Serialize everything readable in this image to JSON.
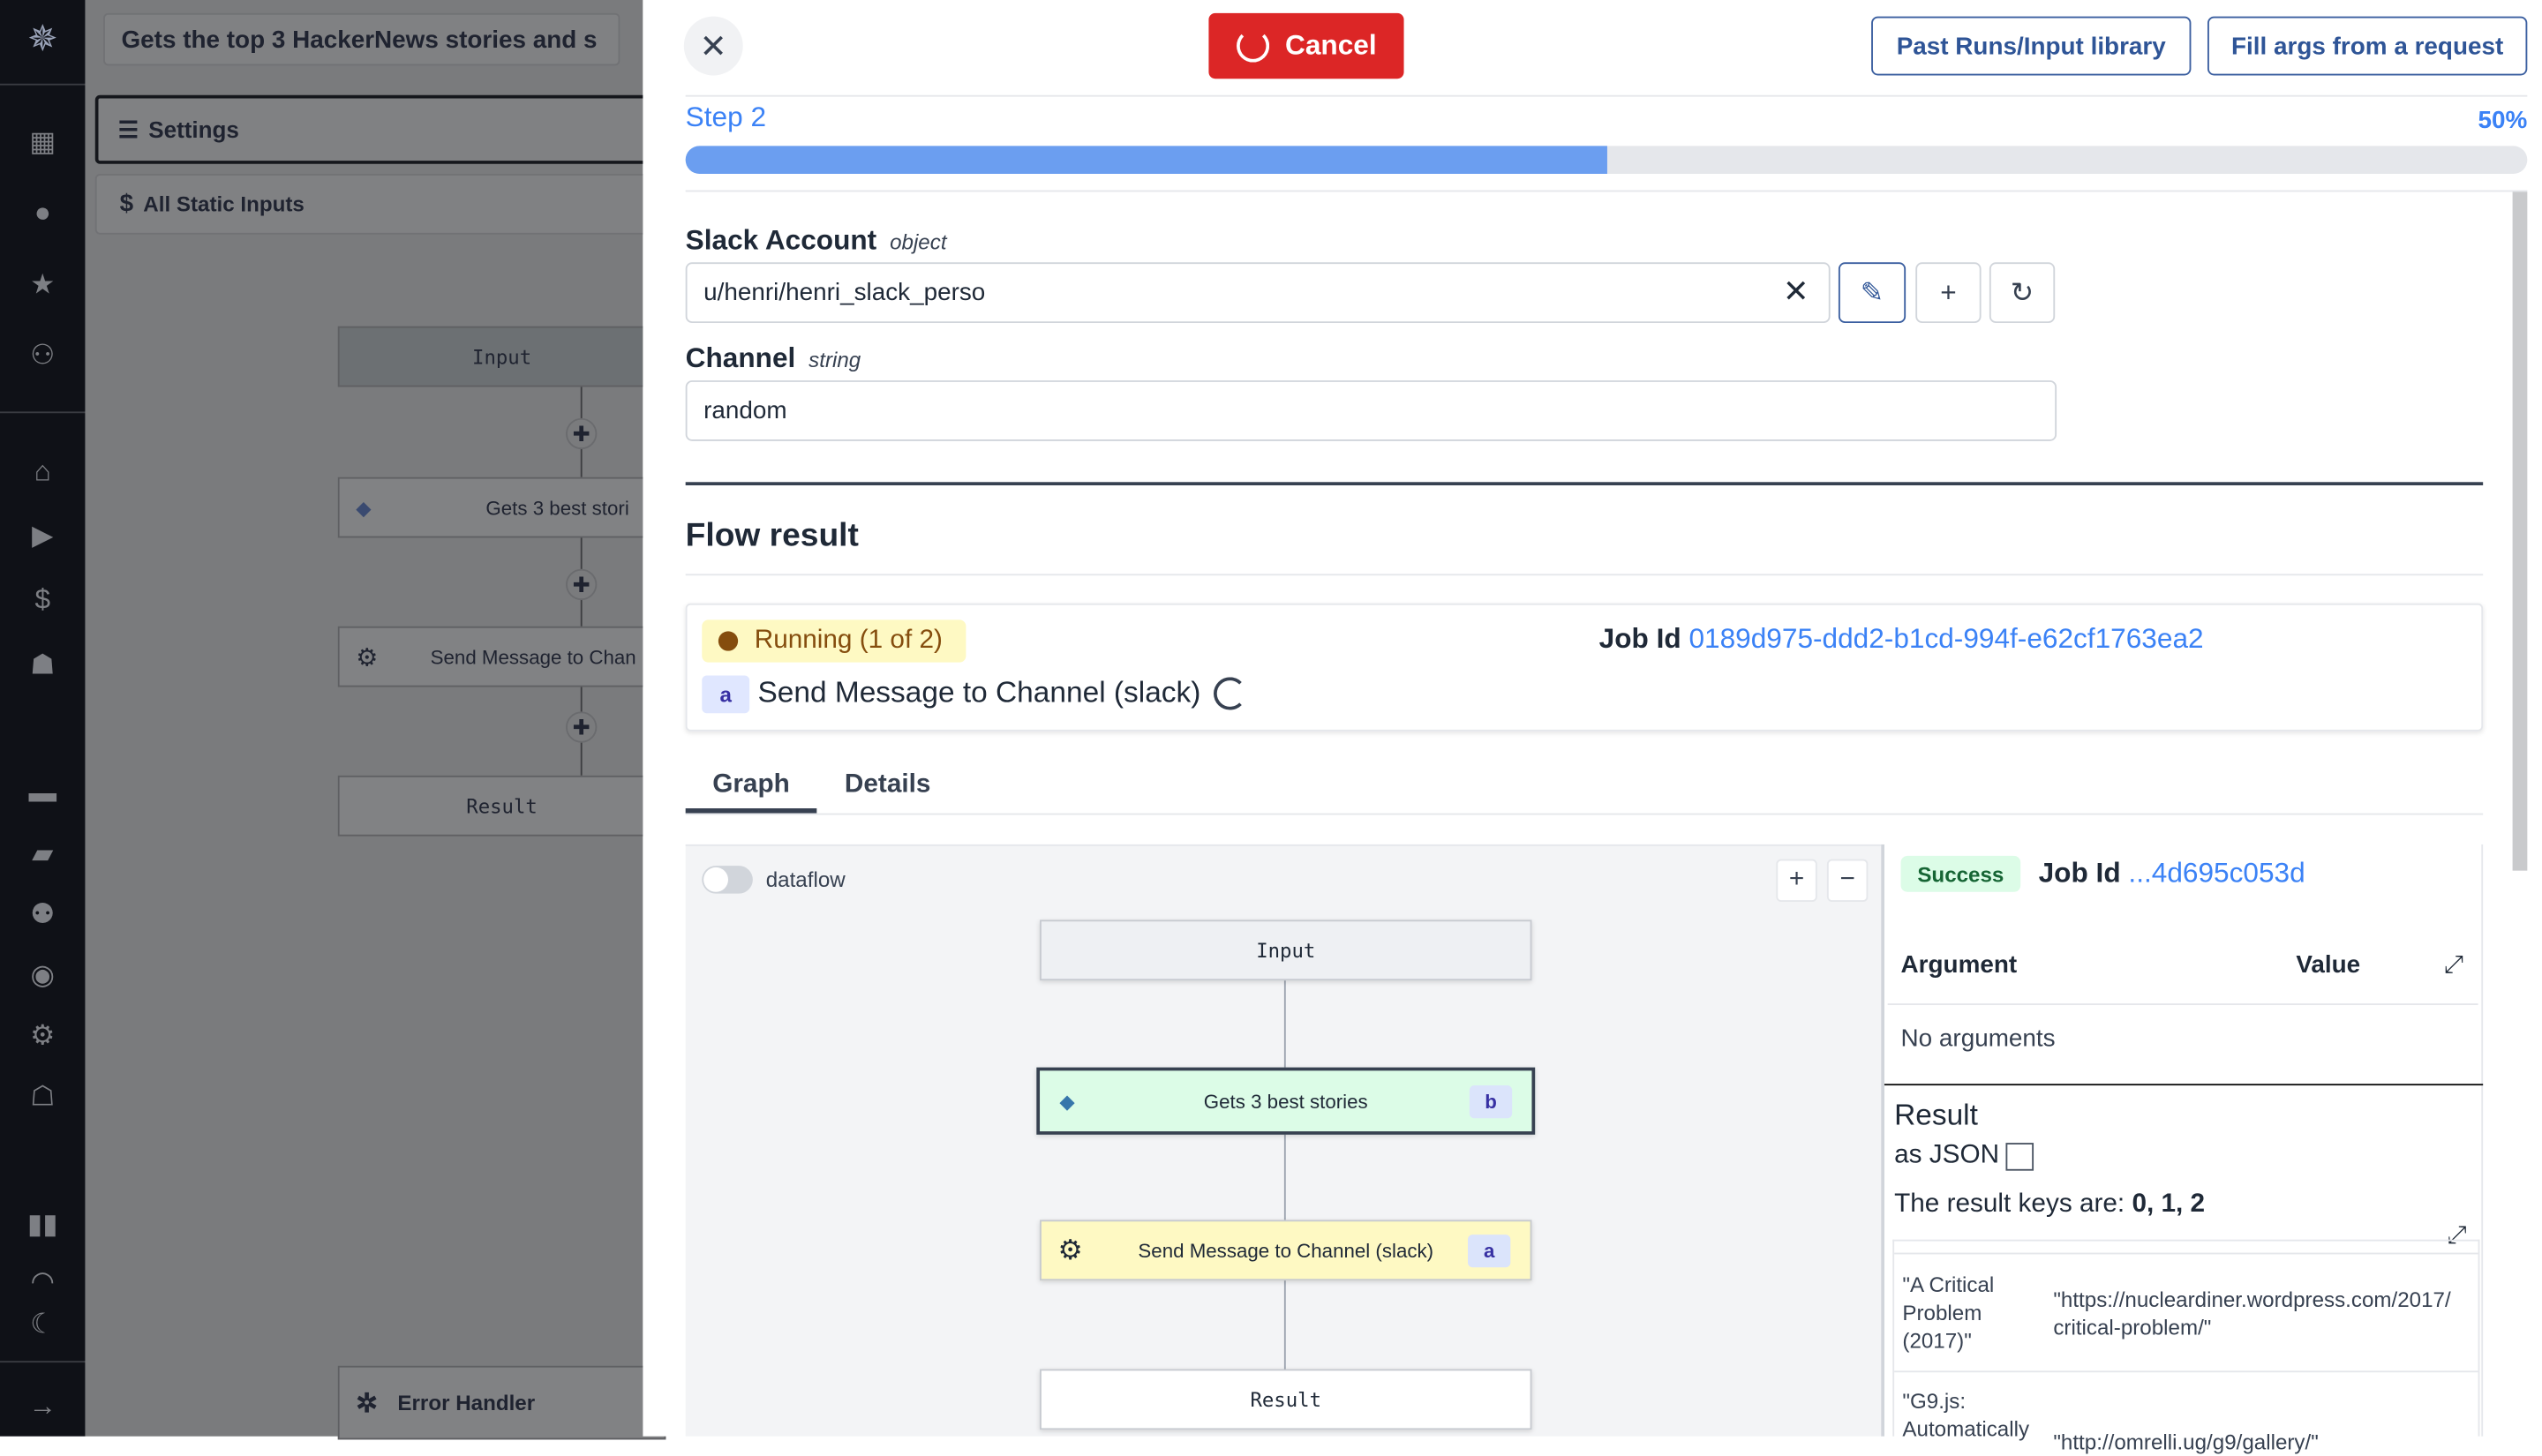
{
  "sidebar": {
    "icons": [
      "windmill-logo-icon",
      "building-icon",
      "user-icon",
      "star-icon",
      "users-icon",
      "home-icon",
      "play-icon",
      "dollar-icon",
      "cubes-icon",
      "calendar-icon",
      "folder-icon",
      "users-cog-icon",
      "eye-icon",
      "gear-icon",
      "robot-icon",
      "book-icon",
      "discord-icon",
      "moon-icon",
      "arrow-right-icon"
    ]
  },
  "flow_editor": {
    "summary": "Gets the top 3 HackerNews stories and s",
    "settings_label": "Settings",
    "static_inputs_label": "All Static Inputs",
    "nodes": {
      "input": "Input",
      "step1": "Gets 3 best stori",
      "step2": "Send Message to Chan",
      "result": "Result"
    },
    "error_handler": "Error Handler"
  },
  "drawer": {
    "cancel_label": "Cancel",
    "past_runs_label": "Past Runs/Input library",
    "fill_args_label": "Fill args from a request",
    "step_label": "Step 2",
    "progress_text": "50%",
    "progress": 0.5,
    "fields": [
      {
        "label": "Slack Account",
        "type": "object",
        "value": "u/henri/henri_slack_perso"
      },
      {
        "label": "Channel",
        "type": "string",
        "value": "random"
      }
    ],
    "flow_result_title": "Flow result",
    "status": {
      "label": "Running (1 of 2)",
      "job_id_label": "Job Id",
      "job_id": "0189d975-ddd2-b1cd-994f-e62cf1763ea2",
      "step_letter": "a",
      "step_name": "Send Message to Channel (slack)"
    },
    "tabs": [
      {
        "label": "Graph",
        "active": true
      },
      {
        "label": "Details",
        "active": false
      }
    ],
    "graph": {
      "dataflow_label": "dataflow",
      "dataflow_on": false,
      "zoom_in": "+",
      "zoom_out": "−",
      "nodes": {
        "input": "Input",
        "step1": "Gets 3 best stories",
        "step1_letter": "b",
        "step2": "Send Message to Channel (slack)",
        "step2_letter": "a",
        "result": "Result"
      }
    },
    "details": {
      "status": "Success",
      "job_id_label": "Job Id",
      "job_id": "...4d695c053d",
      "arg_header": "Argument",
      "value_header": "Value",
      "no_args": "No arguments",
      "result_title": "Result",
      "as_json_label": "as JSON",
      "keys_prefix": "The result keys are:",
      "keys": "0, 1, 2",
      "rows": [
        {
          "key": "\"A Critical Problem (2017)\"",
          "value": "\"https://nucleardiner.wordpress.com/2017/ critical-problem/\""
        },
        {
          "key": "\"G9.js: Automatically",
          "value": "\"http://omrelli.ug/g9/gallery/\""
        }
      ]
    }
  },
  "colors": {
    "accent": "#3b82f6",
    "cancel": "#dc2626",
    "running_bg": "#fef9c3",
    "running_text": "#854d0e",
    "success_bg": "#dcfce7",
    "success_text": "#166534"
  }
}
